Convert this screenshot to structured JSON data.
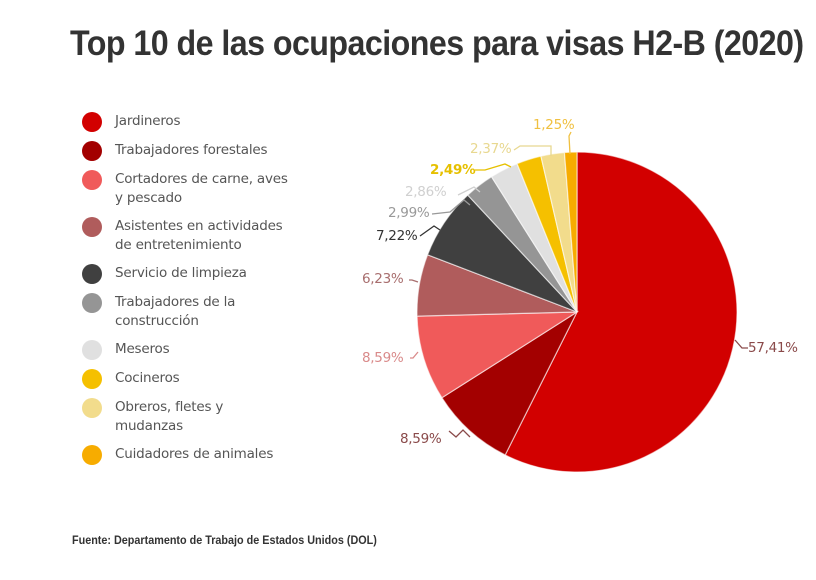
{
  "title": "Top 10 de las ocupaciones para visas H2-B (2020)",
  "source": "Fuente: Departamento de Trabajo de Estados Unidos (DOL)",
  "legend": {
    "items": [
      {
        "label_line1": "Jardineros",
        "label_line2": "",
        "color": "#d20000"
      },
      {
        "label_line1": "Trabajadores forestales",
        "label_line2": "",
        "color": "#a30000"
      },
      {
        "label_line1": "Cortadores de carne, aves",
        "label_line2": "y pescado",
        "color": "#f05a5a"
      },
      {
        "label_line1": "Asistentes en actividades",
        "label_line2": "de entretenimiento",
        "color": "#b05c5c"
      },
      {
        "label_line1": "Servicio de limpieza",
        "label_line2": "",
        "color": "#404040"
      },
      {
        "label_line1": "Trabajadores de la",
        "label_line2": "construcción",
        "color": "#959595"
      },
      {
        "label_line1": "Meseros",
        "label_line2": "",
        "color": "#e0e0e0"
      },
      {
        "label_line1": "Cocineros",
        "label_line2": "",
        "color": "#f5c000"
      },
      {
        "label_line1": "Obreros, fletes y",
        "label_line2": "mudanzas",
        "color": "#f2dc8c"
      },
      {
        "label_line1": "Cuidadores de animales",
        "label_line2": "",
        "color": "#f7ac00"
      }
    ]
  },
  "chart_data": {
    "type": "pie",
    "title": "Top 10 de las ocupaciones para visas H2-B (2020)",
    "categories": [
      "Jardineros",
      "Trabajadores forestales",
      "Cortadores de carne, aves y pescado",
      "Asistentes en actividades de entretenimiento",
      "Servicio de limpieza",
      "Trabajadores de la construcción",
      "Meseros",
      "Cocineros",
      "Obreros, fletes y mudanzas",
      "Cuidadores de animales"
    ],
    "values": [
      57.41,
      8.59,
      8.59,
      6.23,
      7.22,
      2.99,
      2.86,
      2.49,
      2.37,
      1.25
    ],
    "value_labels": [
      "57,41%",
      "8,59%",
      "8,59%",
      "6,23%",
      "7,22%",
      "2,99%",
      "2,86%",
      "2,49%",
      "2,37%",
      "1,25%"
    ],
    "colors": [
      "#d20000",
      "#a30000",
      "#f05a5a",
      "#b05c5c",
      "#404040",
      "#959595",
      "#e0e0e0",
      "#f5c000",
      "#f2dc8c",
      "#f7ac00"
    ],
    "label_colors": [
      "#8a4a4a",
      "#8a4a4a",
      "#d98a8a",
      "#a86e6e",
      "#333333",
      "#999999",
      "#d0d0d0",
      "#e6c000",
      "#e8d890",
      "#f0c040"
    ],
    "start_angle_deg": 0,
    "direction": "clockwise",
    "legend_position": "left",
    "center": [
      577,
      312
    ],
    "radius": 160
  }
}
